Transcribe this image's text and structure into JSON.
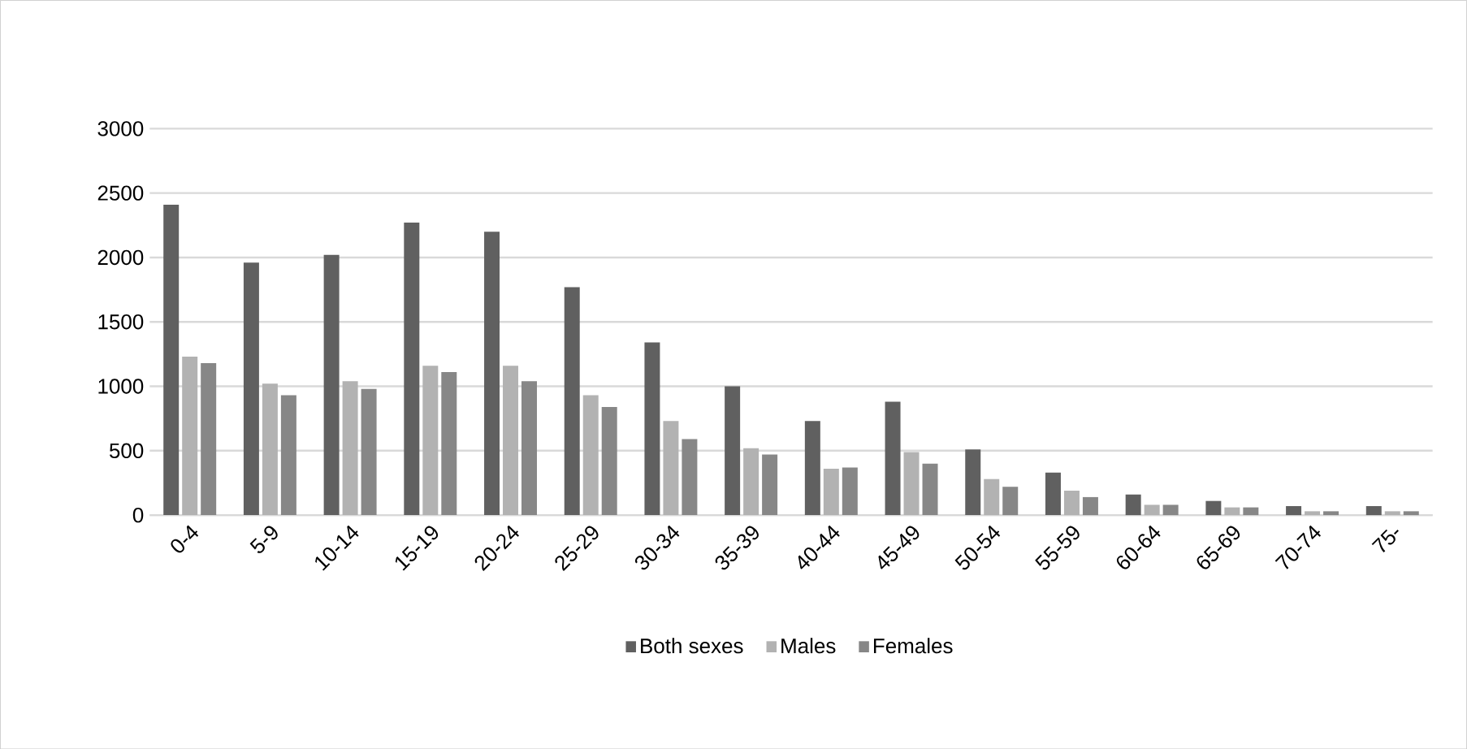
{
  "chart_data": {
    "type": "bar",
    "categories": [
      "0-4",
      "5-9",
      "10-14",
      "15-19",
      "20-24",
      "25-29",
      "30-34",
      "35-39",
      "40-44",
      "45-49",
      "50-54",
      "55-59",
      "60-64",
      "65-69",
      "70-74",
      "75-"
    ],
    "series": [
      {
        "name": "Both sexes",
        "color": "#606060",
        "values": [
          2410,
          1960,
          2020,
          2270,
          2200,
          1770,
          1340,
          1000,
          730,
          880,
          510,
          330,
          160,
          110,
          70,
          70
        ]
      },
      {
        "name": "Males",
        "color": "#b2b2b2",
        "values": [
          1230,
          1020,
          1040,
          1160,
          1160,
          930,
          730,
          520,
          360,
          490,
          280,
          190,
          80,
          60,
          30,
          30
        ]
      },
      {
        "name": "Females",
        "color": "#878787",
        "values": [
          1180,
          930,
          980,
          1110,
          1040,
          840,
          590,
          470,
          370,
          400,
          220,
          140,
          80,
          60,
          30,
          30
        ]
      }
    ],
    "ylim": [
      0,
      3000
    ],
    "yticks": [
      0,
      500,
      1000,
      1500,
      2000,
      2500,
      3000
    ],
    "grid": "y",
    "legend": "bottom"
  }
}
